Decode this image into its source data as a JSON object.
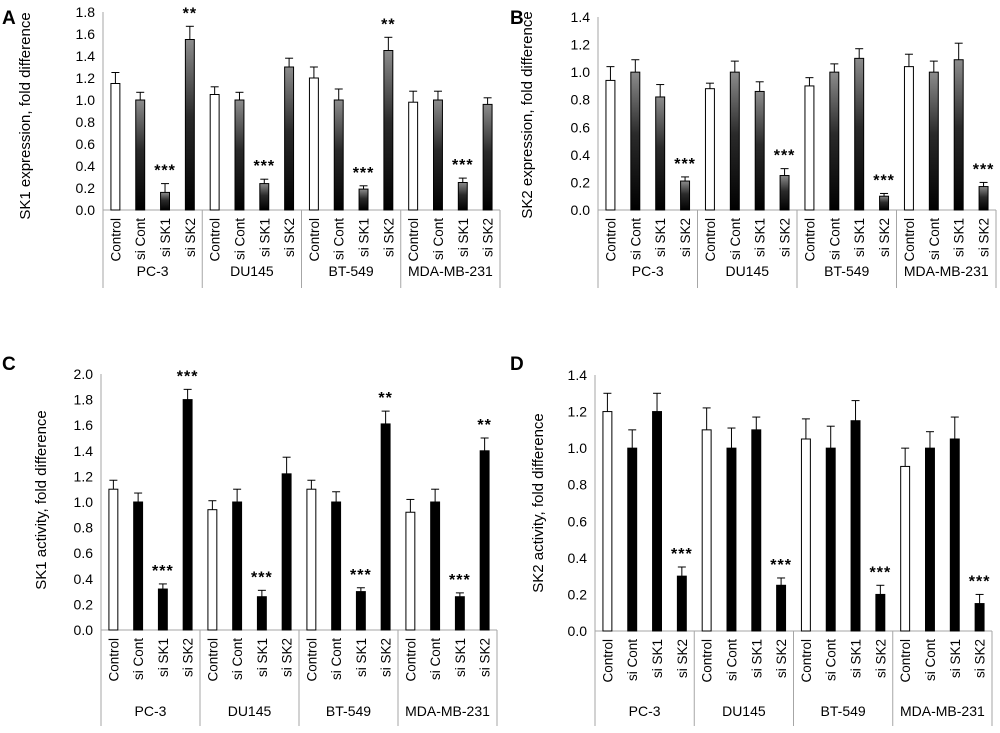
{
  "panels": [
    {
      "letter": "A",
      "chart_data": {
        "type": "bar",
        "ylabel": "SK1 expression, fold difference",
        "ylim": [
          0,
          1.8
        ],
        "yticks": [
          "0.0",
          "0.2",
          "0.4",
          "0.6",
          "0.8",
          "1.0",
          "1.2",
          "1.4",
          "1.6",
          "1.8"
        ],
        "groups": [
          "PC-3",
          "DU145",
          "BT-549",
          "MDA-MB-231"
        ],
        "categories": [
          "Control",
          "si Cont",
          "si SK1",
          "si SK2"
        ],
        "fill_style": [
          "white",
          "gradient",
          "gradient",
          "gradient"
        ],
        "values": [
          [
            1.15,
            1.0,
            0.16,
            1.55
          ],
          [
            1.05,
            1.0,
            0.24,
            1.3
          ],
          [
            1.2,
            1.0,
            0.19,
            1.45
          ],
          [
            0.98,
            1.0,
            0.25,
            0.96
          ]
        ],
        "errors": [
          [
            0.1,
            0.07,
            0.08,
            0.12
          ],
          [
            0.07,
            0.07,
            0.04,
            0.08
          ],
          [
            0.1,
            0.1,
            0.03,
            0.12
          ],
          [
            0.1,
            0.08,
            0.04,
            0.06
          ]
        ],
        "significance": [
          [
            "",
            "",
            "***",
            "**"
          ],
          [
            "",
            "",
            "***",
            ""
          ],
          [
            "",
            "",
            "***",
            "**"
          ],
          [
            "",
            "",
            "***",
            ""
          ]
        ]
      }
    },
    {
      "letter": "B",
      "chart_data": {
        "type": "bar",
        "ylabel": "SK2 expression, fold difference",
        "ylim": [
          0,
          1.4
        ],
        "yticks": [
          "0.0",
          "0.2",
          "0.4",
          "0.6",
          "0.8",
          "1.0",
          "1.2",
          "1.4"
        ],
        "groups": [
          "PC-3",
          "DU145",
          "BT-549",
          "MDA-MB-231"
        ],
        "categories": [
          "Control",
          "si Cont",
          "si SK1",
          "si SK2"
        ],
        "fill_style": [
          "white",
          "gradient",
          "gradient",
          "gradient"
        ],
        "values": [
          [
            0.94,
            1.0,
            0.82,
            0.21
          ],
          [
            0.88,
            1.0,
            0.86,
            0.25
          ],
          [
            0.9,
            1.0,
            1.1,
            0.1
          ],
          [
            1.04,
            1.0,
            1.09,
            0.17
          ]
        ],
        "errors": [
          [
            0.1,
            0.09,
            0.09,
            0.03
          ],
          [
            0.04,
            0.08,
            0.07,
            0.05
          ],
          [
            0.06,
            0.06,
            0.07,
            0.02
          ],
          [
            0.09,
            0.08,
            0.12,
            0.03
          ]
        ],
        "significance": [
          [
            "",
            "",
            "",
            "***"
          ],
          [
            "",
            "",
            "",
            "***"
          ],
          [
            "",
            "",
            "",
            "***"
          ],
          [
            "",
            "",
            "",
            "***"
          ]
        ]
      }
    },
    {
      "letter": "C",
      "chart_data": {
        "type": "bar",
        "ylabel": "SK1 activity, fold difference",
        "ylim": [
          0,
          2.0
        ],
        "yticks": [
          "0.0",
          "0.2",
          "0.4",
          "0.6",
          "0.8",
          "1.0",
          "1.2",
          "1.4",
          "1.6",
          "1.8",
          "2.0"
        ],
        "groups": [
          "PC-3",
          "DU145",
          "BT-549",
          "MDA-MB-231"
        ],
        "categories": [
          "Control",
          "si Cont",
          "si SK1",
          "si SK2"
        ],
        "fill_style": [
          "white",
          "solid",
          "solid",
          "solid"
        ],
        "values": [
          [
            1.1,
            1.0,
            0.32,
            1.8
          ],
          [
            0.94,
            1.0,
            0.26,
            1.22
          ],
          [
            1.1,
            1.0,
            0.3,
            1.61
          ],
          [
            0.92,
            1.0,
            0.26,
            1.4
          ]
        ],
        "errors": [
          [
            0.07,
            0.07,
            0.04,
            0.08
          ],
          [
            0.07,
            0.1,
            0.05,
            0.13
          ],
          [
            0.07,
            0.08,
            0.03,
            0.1
          ],
          [
            0.1,
            0.1,
            0.03,
            0.1
          ]
        ],
        "significance": [
          [
            "",
            "",
            "***",
            "***"
          ],
          [
            "",
            "",
            "***",
            ""
          ],
          [
            "",
            "",
            "***",
            "**"
          ],
          [
            "",
            "",
            "***",
            "**"
          ]
        ]
      }
    },
    {
      "letter": "D",
      "chart_data": {
        "type": "bar",
        "ylabel": "SK2 activity, fold difference",
        "ylim": [
          0,
          1.4
        ],
        "yticks": [
          "0.0",
          "0.2",
          "0.4",
          "0.6",
          "0.8",
          "1.0",
          "1.2",
          "1.4"
        ],
        "groups": [
          "PC-3",
          "DU145",
          "BT-549",
          "MDA-MB-231"
        ],
        "categories": [
          "Control",
          "si Cont",
          "si SK1",
          "si SK2"
        ],
        "fill_style": [
          "white",
          "solid",
          "solid",
          "solid"
        ],
        "values": [
          [
            1.2,
            1.0,
            1.2,
            0.3
          ],
          [
            1.1,
            1.0,
            1.1,
            0.25
          ],
          [
            1.05,
            1.0,
            1.15,
            0.2
          ],
          [
            0.9,
            1.0,
            1.05,
            0.15
          ]
        ],
        "errors": [
          [
            0.1,
            0.1,
            0.1,
            0.05
          ],
          [
            0.12,
            0.11,
            0.07,
            0.04
          ],
          [
            0.11,
            0.12,
            0.11,
            0.05
          ],
          [
            0.1,
            0.09,
            0.12,
            0.05
          ]
        ],
        "significance": [
          [
            "",
            "",
            "",
            "***"
          ],
          [
            "",
            "",
            "",
            "***"
          ],
          [
            "",
            "",
            "",
            "***"
          ],
          [
            "",
            "",
            "",
            "***"
          ]
        ]
      }
    }
  ]
}
